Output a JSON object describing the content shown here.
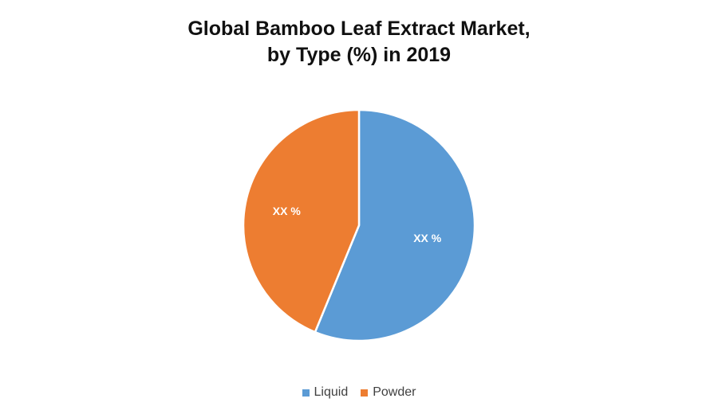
{
  "chart_data": {
    "type": "pie",
    "title": "Global Bamboo Leaf Extract Market, by Type (%) in 2019",
    "title_lines": [
      "Global Bamboo Leaf Extract Market,",
      "by Type (%) in 2019"
    ],
    "categories": [
      "Liquid",
      "Powder"
    ],
    "values": [
      56.2,
      43.8
    ],
    "data_labels": [
      "XX %",
      "XX %"
    ],
    "colors": [
      "#5B9BD5",
      "#ED7D31"
    ],
    "start_angle_deg": 0,
    "direction": "clockwise",
    "legend_position": "bottom",
    "legend": [
      "Liquid",
      "Powder"
    ]
  }
}
